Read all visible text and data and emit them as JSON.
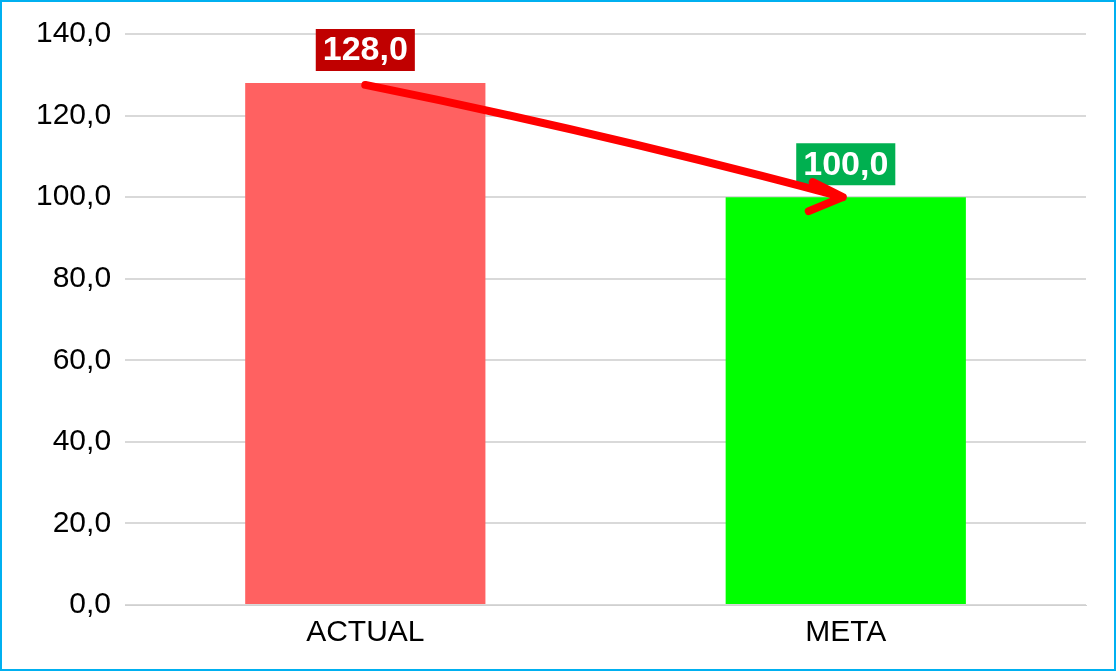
{
  "chart_data": {
    "type": "bar",
    "categories": [
      "ACTUAL",
      "META"
    ],
    "values": [
      128,
      100
    ],
    "colors": [
      "#ff6161",
      "#00ff00"
    ],
    "value_labels": [
      "128,0",
      "100,0"
    ],
    "ylim": [
      0,
      140
    ],
    "yticks": [
      {
        "value": 0,
        "label": "0,0"
      },
      {
        "value": 20,
        "label": "20,0"
      },
      {
        "value": 40,
        "label": "40,0"
      },
      {
        "value": 60,
        "label": "60,0"
      },
      {
        "value": 80,
        "label": "80,0"
      },
      {
        "value": 100,
        "label": "100,0"
      },
      {
        "value": 120,
        "label": "120,0"
      },
      {
        "value": 140,
        "label": "140,0"
      }
    ],
    "grid": "y",
    "legend": false
  }
}
